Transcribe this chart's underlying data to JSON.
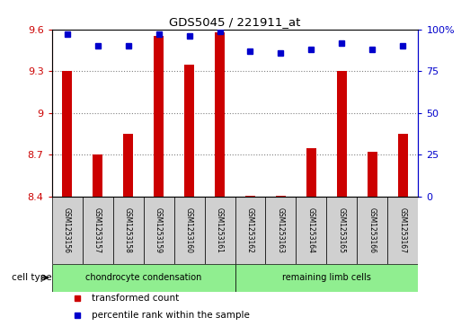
{
  "title": "GDS5045 / 221911_at",
  "samples": [
    "GSM1253156",
    "GSM1253157",
    "GSM1253158",
    "GSM1253159",
    "GSM1253160",
    "GSM1253161",
    "GSM1253162",
    "GSM1253163",
    "GSM1253164",
    "GSM1253165",
    "GSM1253166",
    "GSM1253167"
  ],
  "transformed_counts": [
    9.3,
    8.7,
    8.85,
    9.55,
    9.35,
    9.58,
    8.41,
    8.41,
    8.75,
    9.3,
    8.72,
    8.85
  ],
  "percentile_ranks": [
    97,
    90,
    90,
    97,
    96,
    99,
    87,
    86,
    88,
    92,
    88,
    90
  ],
  "ylim_left": [
    8.4,
    9.6
  ],
  "ylim_right": [
    0,
    100
  ],
  "yticks_left": [
    8.4,
    8.7,
    9.0,
    9.3,
    9.6
  ],
  "yticks_right": [
    0,
    25,
    50,
    75,
    100
  ],
  "ytick_labels_left": [
    "8.4",
    "8.7",
    "9",
    "9.3",
    "9.6"
  ],
  "ytick_labels_right": [
    "0",
    "25",
    "50",
    "75",
    "100%"
  ],
  "bar_color": "#cc0000",
  "dot_color": "#0000cc",
  "bar_bottom": 8.4,
  "groups": [
    {
      "label": "chondrocyte condensation",
      "start": 0,
      "end": 5,
      "color": "#90ee90"
    },
    {
      "label": "remaining limb cells",
      "start": 6,
      "end": 11,
      "color": "#90ee90"
    }
  ],
  "cell_type_label": "cell type",
  "legend_items": [
    {
      "color": "#cc0000",
      "label": "transformed count"
    },
    {
      "color": "#0000cc",
      "label": "percentile rank within the sample"
    }
  ],
  "left_axis_color": "#cc0000",
  "right_axis_color": "#0000cc",
  "grid_color": "#808080",
  "sample_box_color": "#d0d0d0"
}
